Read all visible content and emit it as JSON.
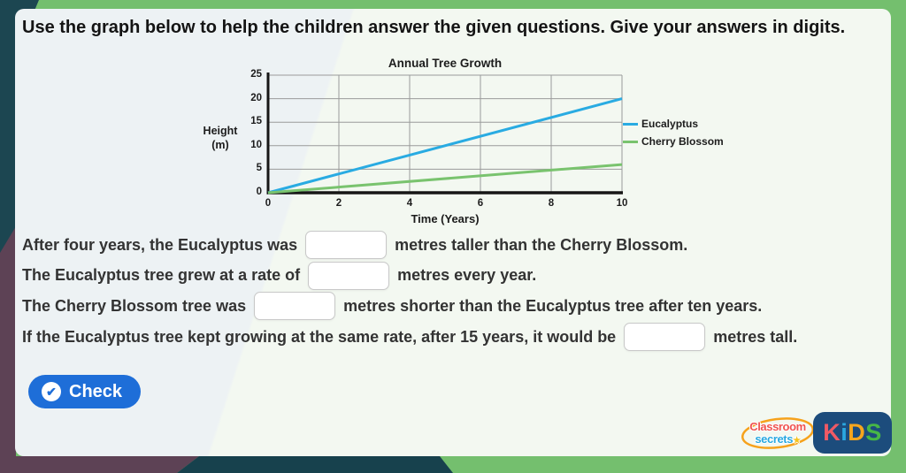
{
  "header": {
    "instruction": "Use the graph below to help the children answer the given questions. Give your answers in digits."
  },
  "chart_data": {
    "type": "line",
    "title": "Annual Tree Growth",
    "xlabel": "Time (Years)",
    "ylabel": "Height (m)",
    "xlim": [
      0,
      10
    ],
    "ylim": [
      0,
      25
    ],
    "xticks": [
      0,
      2,
      4,
      6,
      8,
      10
    ],
    "yticks": [
      0,
      5,
      10,
      15,
      20,
      25
    ],
    "grid": true,
    "legend_position": "right",
    "series": [
      {
        "name": "Eucalyptus",
        "color": "#29abe2",
        "x": [
          0,
          10
        ],
        "y": [
          0,
          20
        ]
      },
      {
        "name": "Cherry Blossom",
        "color": "#79c36e",
        "x": [
          0,
          10
        ],
        "y": [
          0,
          6
        ]
      }
    ]
  },
  "questions": [
    {
      "before": "After four years, the Eucalyptus was",
      "after": "metres taller than the Cherry Blossom.",
      "value": ""
    },
    {
      "before": "The Eucalyptus tree grew at a rate of",
      "after": "metres every year.",
      "value": ""
    },
    {
      "before": "The Cherry Blossom tree was",
      "after": "metres shorter than the Eucalyptus tree after ten years.",
      "value": ""
    },
    {
      "before": "If the Eucalyptus tree kept growing at the same rate, after 15 years, it would be",
      "after": "metres tall.",
      "value": ""
    }
  ],
  "check_button": {
    "label": "Check"
  },
  "icons": {
    "check": "✔",
    "star": "★"
  },
  "logos": {
    "classroom_secrets": {
      "line1": "Classroom",
      "line2": "secrets"
    },
    "kids": {
      "letters": [
        "K",
        "i",
        "D",
        "S"
      ],
      "colors": [
        "#f05a65",
        "#2aa8e0",
        "#f6a61c",
        "#47b746"
      ]
    }
  },
  "colors": {
    "frame_green": "#74bf6e",
    "corner_teal": "#1c4651",
    "corner_purple": "#5d4255",
    "card_bg": "#f1f6f3",
    "check_button_blue": "#1e6ed8",
    "eucalyptus_line": "#29abe2",
    "cherry_blossom_line": "#79c36e",
    "gridline": "#9a9a9a",
    "axis": "#161616",
    "kids_navy": "#1c4c7c"
  }
}
